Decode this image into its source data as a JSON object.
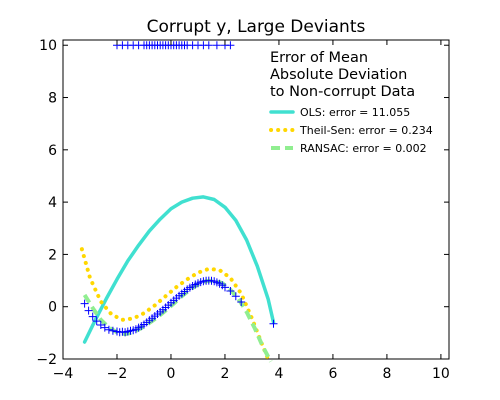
{
  "chart_data": {
    "type": "scatter",
    "title": "Corrupt y, Large Deviants",
    "xlabel": "",
    "ylabel": "",
    "xlim": [
      -4,
      10.3
    ],
    "ylim": [
      -2,
      10.2
    ],
    "x_ticks": [
      -4,
      -2,
      0,
      2,
      4,
      6,
      8,
      10
    ],
    "y_ticks": [
      -2,
      0,
      2,
      4,
      6,
      8,
      10
    ],
    "x_tick_labels": [
      "−4",
      "−2",
      "0",
      "2",
      "4",
      "6",
      "8",
      "10"
    ],
    "y_tick_labels": [
      "−2",
      "0",
      "2",
      "4",
      "6",
      "8",
      "10"
    ],
    "grid": false,
    "legend_position": "top-right",
    "legend_title": [
      "Error of Mean",
      "Absolute Deviation",
      "to Non-corrupt Data"
    ],
    "scatter": {
      "name": "data",
      "marker": "+",
      "color": "#0000ff",
      "points": [
        [
          -3.2,
          0.12
        ],
        [
          -3.05,
          -0.15
        ],
        [
          -2.9,
          -0.38
        ],
        [
          -2.75,
          -0.55
        ],
        [
          -2.6,
          -0.7
        ],
        [
          -2.45,
          -0.8
        ],
        [
          -2.3,
          -0.88
        ],
        [
          -2.15,
          -0.92
        ],
        [
          -2.0,
          -0.95
        ],
        [
          -1.9,
          -0.98
        ],
        [
          -1.8,
          -0.96
        ],
        [
          -1.7,
          -0.98
        ],
        [
          -1.6,
          -0.95
        ],
        [
          -1.5,
          -0.92
        ],
        [
          -1.4,
          -0.9
        ],
        [
          -1.3,
          -0.86
        ],
        [
          -1.2,
          -0.8
        ],
        [
          -1.1,
          -0.74
        ],
        [
          -1.0,
          -0.68
        ],
        [
          -0.9,
          -0.6
        ],
        [
          -0.8,
          -0.52
        ],
        [
          -0.7,
          -0.44
        ],
        [
          -0.6,
          -0.36
        ],
        [
          -0.5,
          -0.28
        ],
        [
          -0.4,
          -0.2
        ],
        [
          -0.3,
          -0.12
        ],
        [
          -0.2,
          -0.03
        ],
        [
          -0.1,
          0.06
        ],
        [
          0.0,
          0.15
        ],
        [
          0.1,
          0.24
        ],
        [
          0.2,
          0.33
        ],
        [
          0.3,
          0.42
        ],
        [
          0.4,
          0.5
        ],
        [
          0.5,
          0.58
        ],
        [
          0.6,
          0.66
        ],
        [
          0.7,
          0.73
        ],
        [
          0.8,
          0.79
        ],
        [
          0.9,
          0.85
        ],
        [
          1.0,
          0.9
        ],
        [
          1.1,
          0.94
        ],
        [
          1.2,
          0.97
        ],
        [
          1.3,
          0.99
        ],
        [
          1.4,
          1.0
        ],
        [
          1.5,
          0.99
        ],
        [
          1.6,
          0.97
        ],
        [
          1.7,
          0.93
        ],
        [
          1.8,
          0.88
        ],
        [
          1.9,
          0.82
        ],
        [
          2.0,
          0.74
        ],
        [
          2.2,
          0.6
        ],
        [
          2.4,
          0.4
        ],
        [
          2.6,
          0.18
        ],
        [
          3.8,
          -0.65
        ],
        [
          -2.0,
          10.0
        ],
        [
          -1.8,
          10.0
        ],
        [
          -1.6,
          10.0
        ],
        [
          -1.4,
          10.0
        ],
        [
          -1.2,
          10.0
        ],
        [
          -1.0,
          10.0
        ],
        [
          -0.9,
          10.0
        ],
        [
          -0.8,
          10.0
        ],
        [
          -0.7,
          10.0
        ],
        [
          -0.6,
          10.0
        ],
        [
          -0.5,
          10.0
        ],
        [
          -0.4,
          10.0
        ],
        [
          -0.3,
          10.0
        ],
        [
          -0.2,
          10.0
        ],
        [
          -0.1,
          10.0
        ],
        [
          0.0,
          10.0
        ],
        [
          0.1,
          10.0
        ],
        [
          0.2,
          10.0
        ],
        [
          0.3,
          10.0
        ],
        [
          0.4,
          10.0
        ],
        [
          0.5,
          10.0
        ],
        [
          0.6,
          10.0
        ],
        [
          0.8,
          10.0
        ],
        [
          1.0,
          10.0
        ],
        [
          1.2,
          10.0
        ],
        [
          1.4,
          10.0
        ],
        [
          1.7,
          10.0
        ],
        [
          2.0,
          10.0
        ],
        [
          2.2,
          10.0
        ]
      ]
    },
    "series": [
      {
        "name": "OLS",
        "label": "OLS: error = 11.055",
        "color": "#40e0d0",
        "style": "solid",
        "x": [
          -3.2,
          -2.8,
          -2.4,
          -2.0,
          -1.6,
          -1.2,
          -0.8,
          -0.4,
          0.0,
          0.4,
          0.8,
          1.2,
          1.6,
          2.0,
          2.4,
          2.8,
          3.2,
          3.6,
          3.8
        ],
        "y": [
          -1.35,
          -0.5,
          0.3,
          1.05,
          1.75,
          2.35,
          2.9,
          3.35,
          3.75,
          4.0,
          4.15,
          4.2,
          4.1,
          3.8,
          3.3,
          2.55,
          1.55,
          0.3,
          -0.6
        ]
      },
      {
        "name": "Theil-Sen",
        "label": "Theil-Sen: error = 0.234",
        "color": "#ffd700",
        "style": "dotted",
        "x": [
          -3.3,
          -3.0,
          -2.6,
          -2.2,
          -1.8,
          -1.4,
          -1.0,
          -0.6,
          -0.2,
          0.2,
          0.6,
          1.0,
          1.4,
          1.8,
          2.2,
          2.6,
          3.0,
          3.4,
          3.6
        ],
        "y": [
          2.2,
          1.1,
          0.2,
          -0.3,
          -0.5,
          -0.45,
          -0.25,
          0.05,
          0.4,
          0.75,
          1.05,
          1.3,
          1.45,
          1.4,
          1.1,
          0.5,
          -0.45,
          -1.5,
          -2.0
        ]
      },
      {
        "name": "RANSAC",
        "label": "RANSAC: error = 0.002",
        "color": "#90ee90",
        "style": "dashed",
        "x": [
          -3.2,
          -2.9,
          -2.6,
          -2.3,
          -2.0,
          -1.7,
          -1.4,
          -1.1,
          -0.8,
          -0.5,
          -0.2,
          0.1,
          0.4,
          0.7,
          1.0,
          1.3,
          1.6,
          1.9,
          2.2,
          2.5,
          2.8,
          3.1,
          3.4,
          3.7
        ],
        "y": [
          0.45,
          -0.05,
          -0.5,
          -0.8,
          -0.98,
          -1.05,
          -0.98,
          -0.82,
          -0.62,
          -0.4,
          -0.15,
          0.12,
          0.4,
          0.65,
          0.85,
          0.98,
          1.0,
          0.9,
          0.65,
          0.3,
          -0.2,
          -0.82,
          -1.52,
          -2.1
        ]
      }
    ]
  }
}
